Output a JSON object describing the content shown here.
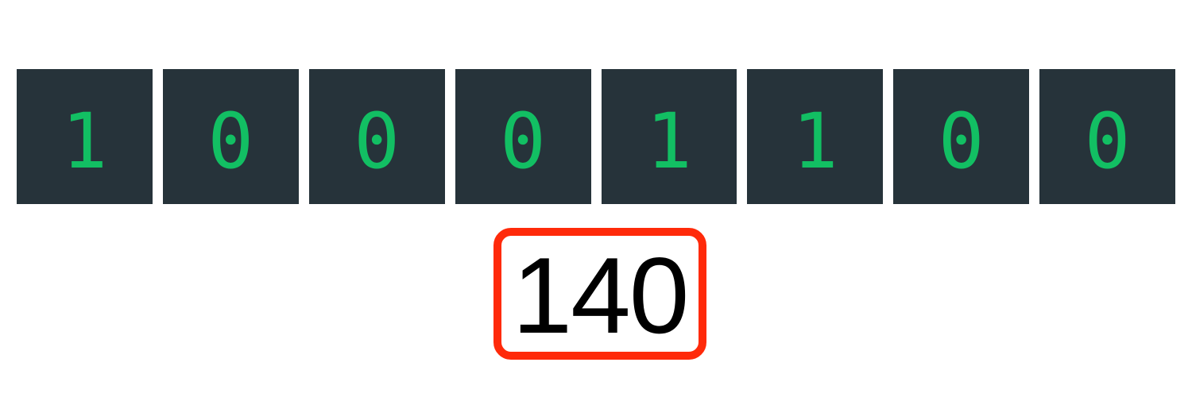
{
  "bits": [
    "1",
    "0",
    "0",
    "0",
    "1",
    "1",
    "0",
    "0"
  ],
  "result": "140",
  "colors": {
    "cell_background": "#26333a",
    "bit_text": "#12bf63",
    "result_border": "#ff2a0a",
    "result_text": "#000000"
  }
}
